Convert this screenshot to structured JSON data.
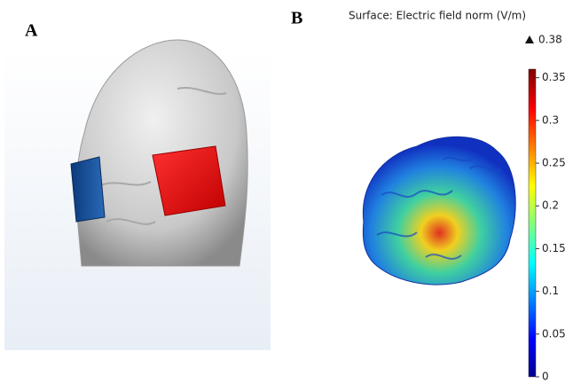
{
  "panels": [
    {
      "label": "A"
    },
    {
      "label": "B"
    }
  ],
  "colorbar": {
    "title": "Surface: Electric field norm (V/m)",
    "max": 0.38,
    "lim": [
      0,
      0.36
    ],
    "ticks": [
      0,
      0.05,
      0.1,
      0.15,
      0.2,
      0.25,
      0.3,
      0.35
    ]
  }
}
